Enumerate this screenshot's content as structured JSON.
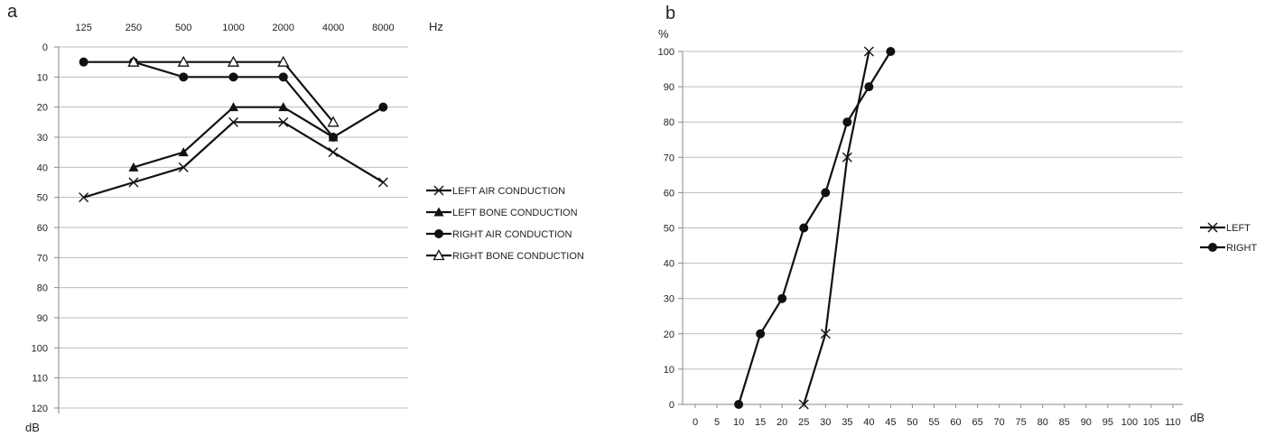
{
  "panels": [
    {
      "label": "a"
    },
    {
      "label": "b"
    }
  ],
  "chart_data": [
    {
      "type": "line",
      "panel": "a",
      "x_unit": "Hz",
      "y_unit": "dB",
      "x_axis_position": "top",
      "y_inverted": true,
      "categories": [
        "125",
        "250",
        "500",
        "1000",
        "2000",
        "4000",
        "8000"
      ],
      "yticks": [
        0,
        10,
        20,
        30,
        40,
        50,
        60,
        70,
        80,
        90,
        100,
        110,
        120
      ],
      "ylim": [
        0,
        120
      ],
      "grid": "horizontal",
      "legend_position": "right",
      "series": [
        {
          "name": "LEFT AIR CONDUCTION",
          "marker": "x",
          "values": [
            50,
            45,
            40,
            25,
            25,
            35,
            45
          ]
        },
        {
          "name": "LEFT BONE CONDUCTION",
          "marker": "filled-triangle",
          "values": [
            null,
            40,
            35,
            20,
            20,
            30,
            null
          ]
        },
        {
          "name": "RIGHT AIR CONDUCTION",
          "marker": "filled-circle",
          "values": [
            5,
            5,
            10,
            10,
            10,
            30,
            20
          ]
        },
        {
          "name": "RIGHT BONE CONDUCTION",
          "marker": "open-triangle",
          "values": [
            null,
            5,
            5,
            5,
            5,
            25,
            null
          ]
        }
      ]
    },
    {
      "type": "line",
      "panel": "b",
      "x_unit": "dB",
      "y_unit": "%",
      "xticks": [
        0,
        5,
        10,
        15,
        20,
        25,
        30,
        35,
        40,
        45,
        50,
        55,
        60,
        65,
        70,
        75,
        80,
        85,
        90,
        95,
        100,
        105,
        110
      ],
      "xlim": [
        0,
        110
      ],
      "yticks": [
        0,
        10,
        20,
        30,
        40,
        50,
        60,
        70,
        80,
        90,
        100
      ],
      "ylim": [
        0,
        100
      ],
      "grid": "horizontal",
      "legend_position": "right",
      "series": [
        {
          "name": "LEFT",
          "marker": "x",
          "points": [
            [
              25,
              0
            ],
            [
              30,
              20
            ],
            [
              35,
              70
            ],
            [
              40,
              100
            ]
          ]
        },
        {
          "name": "RIGHT",
          "marker": "filled-circle",
          "points": [
            [
              10,
              0
            ],
            [
              15,
              20
            ],
            [
              20,
              30
            ],
            [
              25,
              50
            ],
            [
              30,
              60
            ],
            [
              35,
              80
            ],
            [
              40,
              90
            ],
            [
              45,
              100
            ]
          ]
        }
      ]
    }
  ]
}
